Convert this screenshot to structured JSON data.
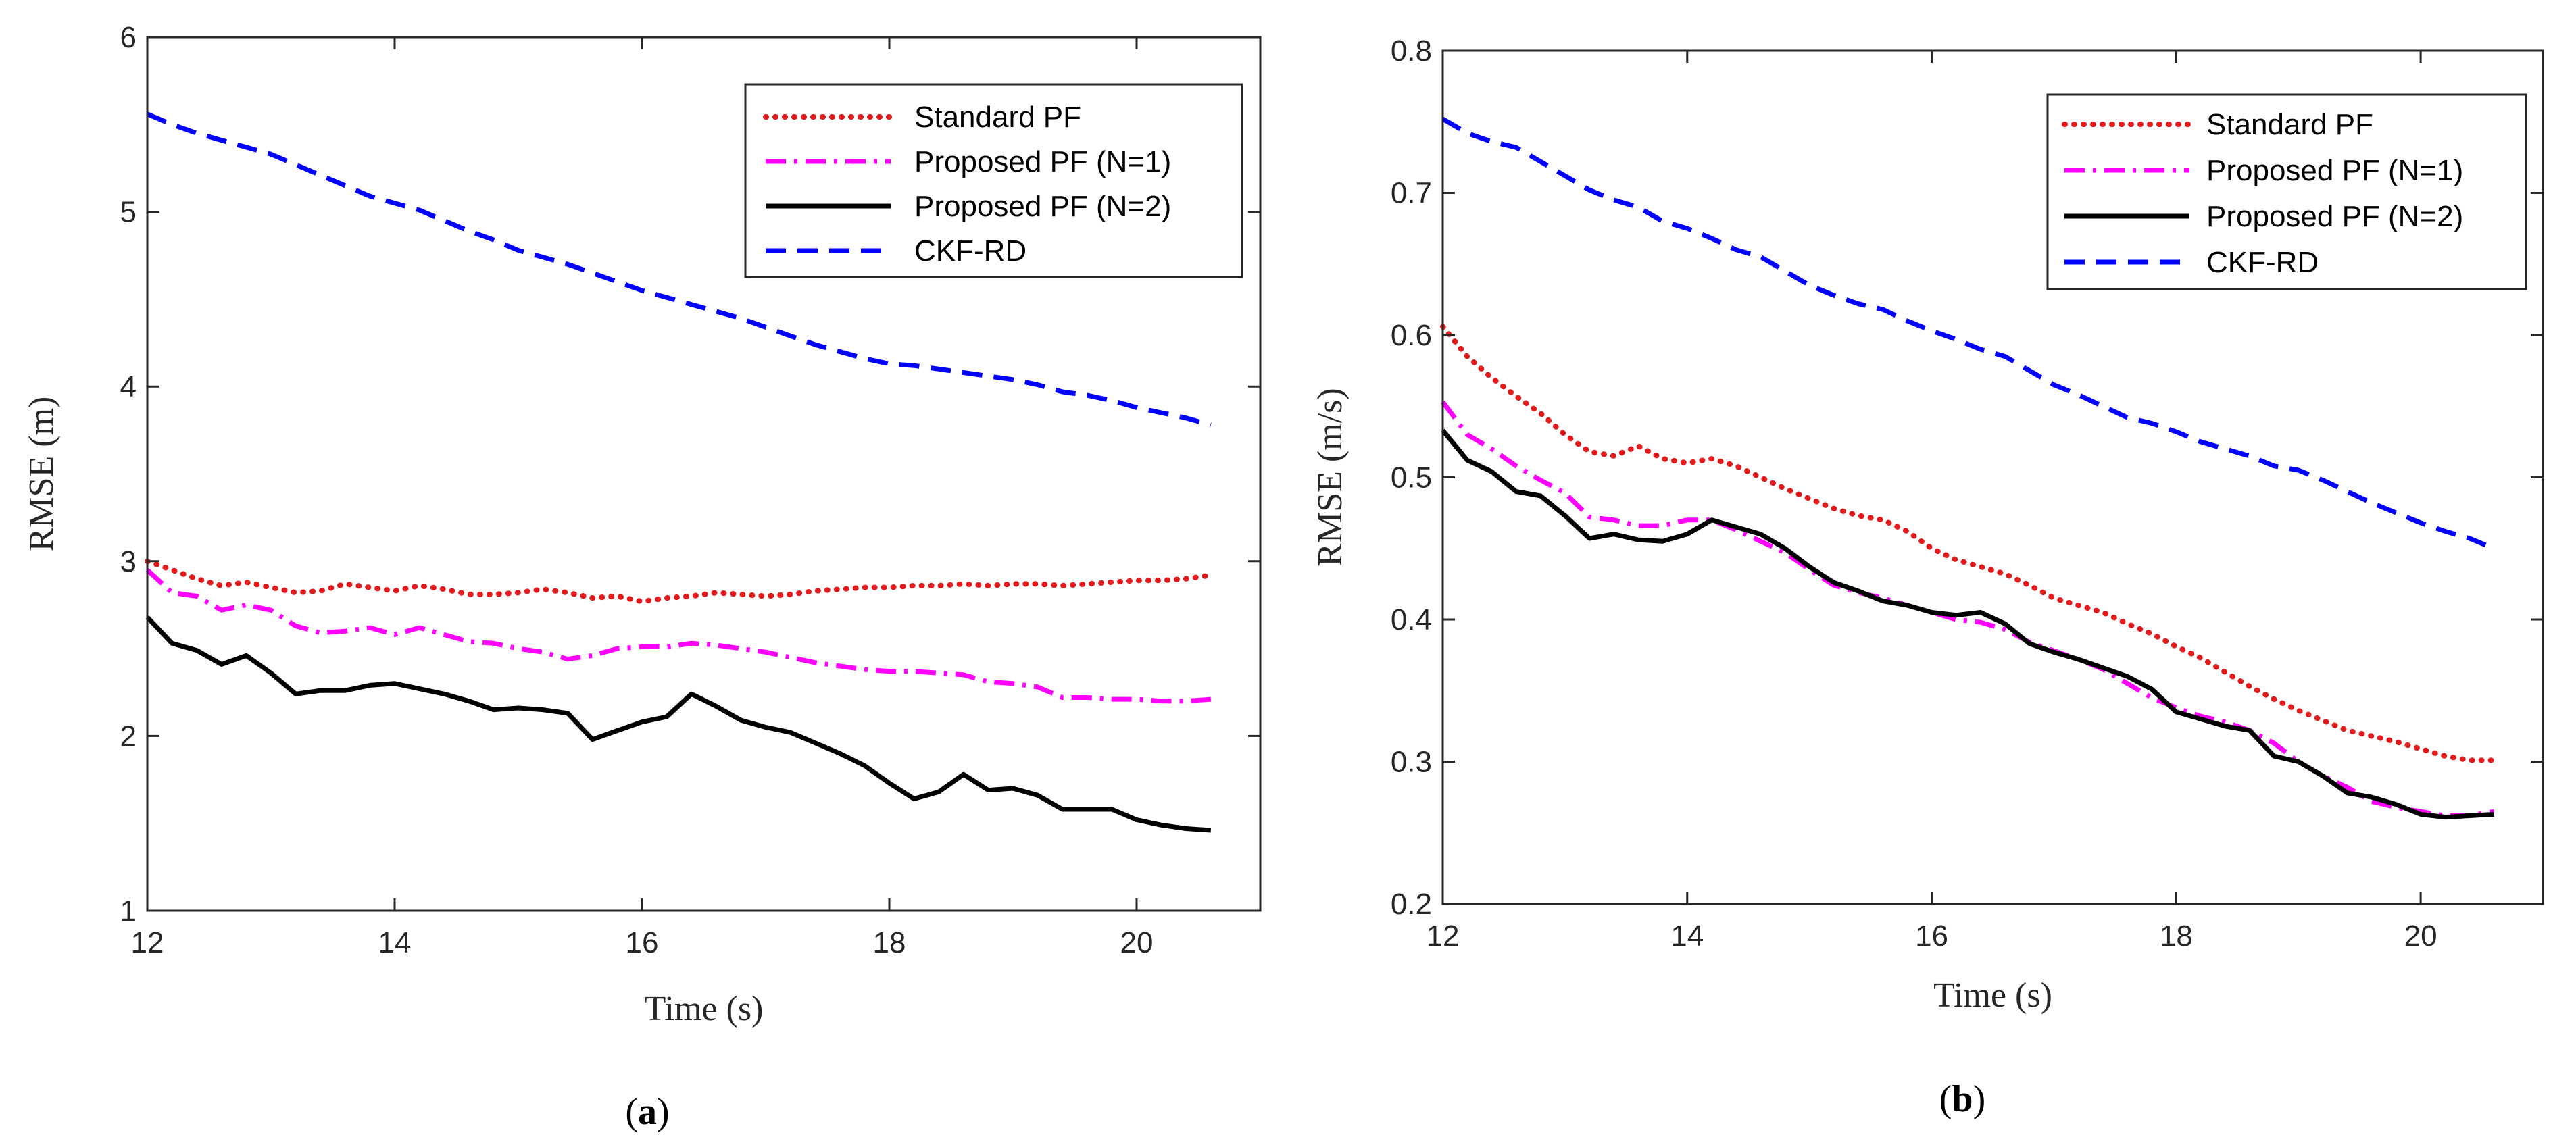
{
  "chart_data": [
    {
      "type": "line",
      "caption": {
        "open": "(",
        "letter": "a",
        "close": ")"
      },
      "xlabel": "Time (s)",
      "ylabel": "RMSE (m)",
      "xlim": [
        12,
        21
      ],
      "ylim": [
        1,
        6
      ],
      "xticks": [
        "12",
        "14",
        "16",
        "18",
        "20"
      ],
      "yticks": [
        "1",
        "2",
        "3",
        "4",
        "5",
        "6"
      ],
      "legend_position": "top-right",
      "x": [
        12.0,
        12.2,
        12.4,
        12.6,
        12.8,
        13.0,
        13.2,
        13.4,
        13.6,
        13.8,
        14.0,
        14.2,
        14.4,
        14.6,
        14.8,
        15.0,
        15.2,
        15.4,
        15.6,
        15.8,
        16.0,
        16.2,
        16.4,
        16.6,
        16.8,
        17.0,
        17.2,
        17.4,
        17.6,
        17.8,
        18.0,
        18.2,
        18.4,
        18.6,
        18.8,
        19.0,
        19.2,
        19.4,
        19.6,
        19.8,
        20.0,
        20.2,
        20.4,
        20.6
      ],
      "series": [
        {
          "name": "Standard PF",
          "color": "#e31a1c",
          "style": "dotted",
          "values": [
            3.0,
            2.95,
            2.9,
            2.86,
            2.88,
            2.85,
            2.82,
            2.83,
            2.87,
            2.85,
            2.83,
            2.86,
            2.84,
            2.81,
            2.81,
            2.82,
            2.84,
            2.82,
            2.79,
            2.8,
            2.77,
            2.79,
            2.8,
            2.82,
            2.81,
            2.8,
            2.81,
            2.83,
            2.84,
            2.85,
            2.85,
            2.86,
            2.86,
            2.87,
            2.86,
            2.87,
            2.87,
            2.86,
            2.87,
            2.88,
            2.89,
            2.89,
            2.9,
            2.92
          ]
        },
        {
          "name": "Proposed PF (N=1)",
          "color": "#ff00ff",
          "style": "dashdot",
          "values": [
            2.95,
            2.82,
            2.8,
            2.72,
            2.75,
            2.72,
            2.63,
            2.59,
            2.6,
            2.62,
            2.58,
            2.62,
            2.58,
            2.54,
            2.53,
            2.5,
            2.48,
            2.44,
            2.46,
            2.5,
            2.51,
            2.51,
            2.53,
            2.52,
            2.5,
            2.48,
            2.45,
            2.42,
            2.4,
            2.38,
            2.37,
            2.37,
            2.36,
            2.35,
            2.31,
            2.3,
            2.28,
            2.22,
            2.22,
            2.21,
            2.21,
            2.2,
            2.2,
            2.21
          ]
        },
        {
          "name": "Proposed PF (N=2)",
          "color": "#000000",
          "style": "solid",
          "values": [
            2.68,
            2.53,
            2.49,
            2.41,
            2.46,
            2.36,
            2.24,
            2.26,
            2.26,
            2.29,
            2.3,
            2.27,
            2.24,
            2.2,
            2.15,
            2.16,
            2.15,
            2.13,
            1.98,
            2.03,
            2.08,
            2.11,
            2.24,
            2.17,
            2.09,
            2.05,
            2.02,
            1.96,
            1.9,
            1.83,
            1.73,
            1.64,
            1.68,
            1.78,
            1.69,
            1.7,
            1.66,
            1.58,
            1.58,
            1.58,
            1.52,
            1.49,
            1.47,
            1.46
          ]
        },
        {
          "name": "CKF-RD",
          "color": "#0000ff",
          "style": "dashed",
          "values": [
            5.56,
            5.5,
            5.45,
            5.41,
            5.37,
            5.33,
            5.27,
            5.21,
            5.15,
            5.09,
            5.05,
            5.01,
            4.95,
            4.89,
            4.84,
            4.78,
            4.74,
            4.7,
            4.65,
            4.6,
            4.55,
            4.51,
            4.47,
            4.43,
            4.39,
            4.34,
            4.29,
            4.24,
            4.2,
            4.16,
            4.13,
            4.12,
            4.1,
            4.08,
            4.06,
            4.04,
            4.01,
            3.97,
            3.95,
            3.92,
            3.88,
            3.85,
            3.82,
            3.78
          ]
        }
      ]
    },
    {
      "type": "line",
      "caption": {
        "open": "(",
        "letter": "b",
        "close": ")"
      },
      "xlabel": "Time (s)",
      "ylabel": "RMSE (m/s)",
      "xlim": [
        12,
        21
      ],
      "ylim": [
        0.2,
        0.8
      ],
      "xticks": [
        "12",
        "14",
        "16",
        "18",
        "20"
      ],
      "yticks": [
        "0.2",
        "0.3",
        "0.4",
        "0.5",
        "0.6",
        "0.7",
        "0.8"
      ],
      "legend_position": "top-right",
      "x": [
        12.0,
        12.2,
        12.4,
        12.6,
        12.8,
        13.0,
        13.2,
        13.4,
        13.6,
        13.8,
        14.0,
        14.2,
        14.4,
        14.6,
        14.8,
        15.0,
        15.2,
        15.4,
        15.6,
        15.8,
        16.0,
        16.2,
        16.4,
        16.6,
        16.8,
        17.0,
        17.2,
        17.4,
        17.6,
        17.8,
        18.0,
        18.2,
        18.4,
        18.6,
        18.8,
        19.0,
        19.2,
        19.4,
        19.6,
        19.8,
        20.0,
        20.2,
        20.4,
        20.6
      ],
      "series": [
        {
          "name": "Standard PF",
          "color": "#e31a1c",
          "style": "dotted",
          "values": [
            0.606,
            0.585,
            0.57,
            0.557,
            0.545,
            0.53,
            0.518,
            0.515,
            0.522,
            0.513,
            0.51,
            0.513,
            0.508,
            0.5,
            0.492,
            0.485,
            0.478,
            0.473,
            0.47,
            0.462,
            0.45,
            0.442,
            0.437,
            0.432,
            0.424,
            0.415,
            0.41,
            0.405,
            0.397,
            0.39,
            0.381,
            0.373,
            0.363,
            0.353,
            0.344,
            0.336,
            0.329,
            0.322,
            0.318,
            0.314,
            0.309,
            0.304,
            0.301,
            0.301
          ]
        },
        {
          "name": "Proposed PF (N=1)",
          "color": "#ff00ff",
          "style": "dashdot",
          "values": [
            0.553,
            0.53,
            0.52,
            0.508,
            0.498,
            0.489,
            0.472,
            0.47,
            0.466,
            0.466,
            0.47,
            0.47,
            0.463,
            0.455,
            0.447,
            0.435,
            0.424,
            0.419,
            0.415,
            0.41,
            0.405,
            0.4,
            0.398,
            0.393,
            0.384,
            0.378,
            0.372,
            0.365,
            0.355,
            0.345,
            0.338,
            0.332,
            0.328,
            0.322,
            0.313,
            0.3,
            0.29,
            0.282,
            0.272,
            0.268,
            0.265,
            0.262,
            0.262,
            0.265
          ]
        },
        {
          "name": "Proposed PF (N=2)",
          "color": "#000000",
          "style": "solid",
          "values": [
            0.533,
            0.512,
            0.504,
            0.49,
            0.487,
            0.473,
            0.457,
            0.46,
            0.456,
            0.455,
            0.46,
            0.47,
            0.465,
            0.46,
            0.45,
            0.437,
            0.426,
            0.42,
            0.413,
            0.41,
            0.405,
            0.403,
            0.405,
            0.397,
            0.383,
            0.377,
            0.372,
            0.366,
            0.36,
            0.351,
            0.335,
            0.33,
            0.325,
            0.322,
            0.304,
            0.3,
            0.29,
            0.278,
            0.275,
            0.27,
            0.263,
            0.261,
            0.262,
            0.263
          ]
        },
        {
          "name": "CKF-RD",
          "color": "#0000ff",
          "style": "dashed",
          "values": [
            0.752,
            0.742,
            0.736,
            0.732,
            0.722,
            0.712,
            0.702,
            0.695,
            0.69,
            0.68,
            0.675,
            0.668,
            0.66,
            0.655,
            0.645,
            0.635,
            0.628,
            0.622,
            0.618,
            0.61,
            0.603,
            0.597,
            0.59,
            0.585,
            0.575,
            0.565,
            0.558,
            0.55,
            0.542,
            0.538,
            0.532,
            0.525,
            0.52,
            0.515,
            0.508,
            0.505,
            0.498,
            0.49,
            0.482,
            0.475,
            0.468,
            0.462,
            0.457,
            0.45
          ]
        }
      ]
    }
  ]
}
